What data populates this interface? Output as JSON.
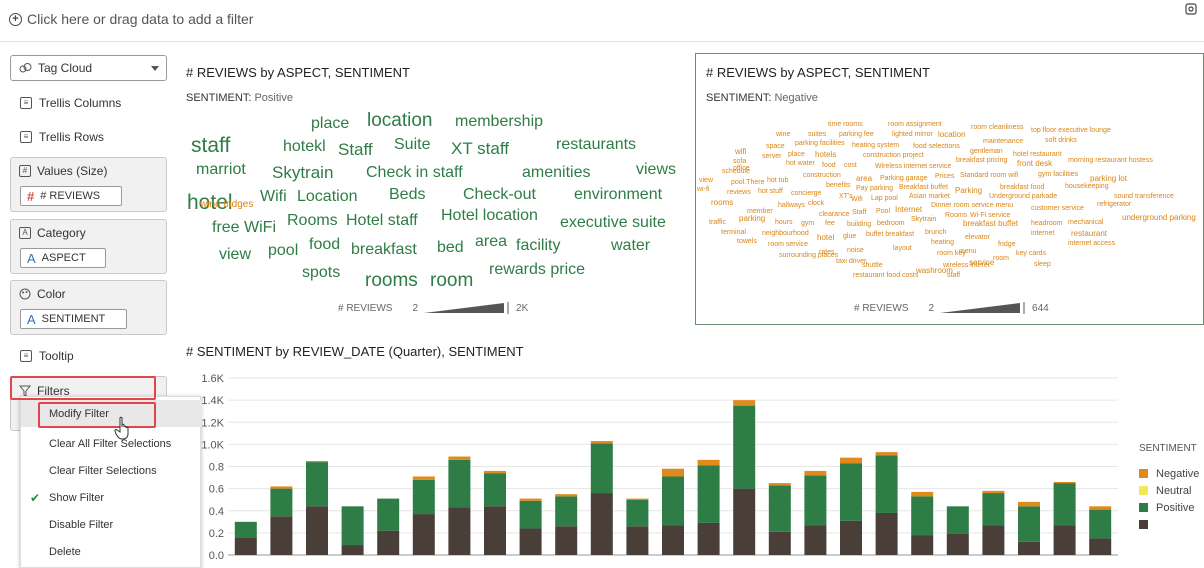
{
  "filterbar": {
    "add_label": "Click here or drag data to add a filter"
  },
  "grammar": {
    "viz_type": "Tag Cloud",
    "trellis_columns": "Trellis Columns",
    "trellis_rows": "Trellis Rows",
    "values_label": "Values (Size)",
    "values_pill": "# REVIEWS",
    "category_label": "Category",
    "category_pill": "ASPECT",
    "color_label": "Color",
    "color_pill": "SENTIMENT",
    "tooltip": "Tooltip",
    "filters": "Filters"
  },
  "menu": {
    "items": [
      "Modify Filter",
      "Clear All Filter Selections",
      "Clear Filter Selections",
      "Show Filter",
      "Disable Filter",
      "Delete"
    ]
  },
  "cloud_pos": {
    "title": "# REVIEWS by ASPECT, SENTIMENT",
    "sentiment_key": "SENTIMENT:",
    "sentiment_val": "Positive",
    "legend_title": "# REVIEWS",
    "legend_min": "2",
    "legend_max": "2K",
    "tags": [
      "place",
      "location",
      "membership",
      "staff",
      "hotekl",
      "Suite",
      "Staff",
      "XT staff",
      "restaurants",
      "marriot",
      "Skytrain",
      "Check in staff",
      "amenities",
      "views",
      "hotel",
      "Wifi",
      "Location",
      "Beds",
      "Check-out",
      "environment",
      "free WiFi",
      "Rooms",
      "Hotel staff",
      "Hotel location",
      "executive suite",
      "view",
      "pool",
      "food",
      "breakfast",
      "bed",
      "area",
      "facility",
      "water",
      "spots",
      "rooms",
      "room",
      "rewards price"
    ]
  },
  "cloud_neg": {
    "title": "# REVIEWS by ASPECT, SENTIMENT",
    "sentiment_key": "SENTIMENT:",
    "sentiment_val": "Negative",
    "legend_title": "# REVIEWS",
    "legend_min": "2",
    "legend_max": "644",
    "tags": [
      "time rooms",
      "room assignment",
      "wine",
      "suites",
      "parking fee",
      "lighted mirror",
      "location",
      "room cleanliness",
      "top floor executive lounge",
      "parking facilities",
      "heating system",
      "food selections",
      "maintenance",
      "soft drinks",
      "wifi",
      "space",
      "place",
      "hotels",
      "construction project",
      "gentleman",
      "hotel restaurant",
      "sofa",
      "server",
      "hot water",
      "food",
      "cost",
      "Wireless internet service",
      "breakfast pricing",
      "front desk",
      "morning restaurant hostess",
      "view",
      "schedule",
      "office",
      "construction",
      "area",
      "Parking garage",
      "Prices",
      "Standard room wifi",
      "gym facilities",
      "parking lot",
      "wi-fi",
      "pool.There",
      "hot tub",
      "benefits",
      "Pay parking",
      "Breakfast buffet",
      "Parking",
      "breakfast food",
      "housekeeping",
      "reviews",
      "hot stuff",
      "concierge",
      "XT's",
      "Wifi",
      "Lap pool",
      "Asian market",
      "Underground parkade",
      "sound transference",
      "rooms",
      "hallways",
      "clock",
      "Dinner room service menu",
      "customer service",
      "refrigerator",
      "member",
      "clearance",
      "Staff",
      "Pool",
      "Internet",
      "Rooms",
      "Wi-Fi service",
      "traffic",
      "parking",
      "hours",
      "gym",
      "fee",
      "building",
      "bedroom",
      "Skytrain",
      "breakfast buffet",
      "headroom",
      "mechanical",
      "underground parking",
      "terminal",
      "neighbourhood",
      "hotel",
      "glue",
      "buffet breakfast",
      "brunch",
      "elevator",
      "internet",
      "restaurant",
      "towels",
      "room service",
      "rates",
      "noise",
      "layout",
      "heating",
      "fridge",
      "internet access",
      "surrounding places",
      "taxi driver",
      "shuttle",
      "room key",
      "menu",
      "key cards",
      "restaurant food costs",
      "wireless interet",
      "service",
      "room",
      "sleep",
      "washroom",
      "staff",
      "wine fridges"
    ]
  },
  "chart_data": {
    "type": "bar",
    "title": "# SENTIMENT by REVIEW_DATE (Quarter), SENTIMENT",
    "legend_title": "SENTIMENT",
    "series": [
      {
        "name": "Negative",
        "color": "#e08a1e",
        "values": [
          0,
          0.02,
          0.01,
          0,
          0,
          0.03,
          0.03,
          0.02,
          0.02,
          0.02,
          0.02,
          0.01,
          0.07,
          0.05,
          0.05,
          0.02,
          0.04,
          0.05,
          0.03,
          0.04,
          0,
          0.02,
          0.04,
          0.01,
          0.03
        ]
      },
      {
        "name": "Neutral",
        "color": "#f2e85a",
        "values": [
          0,
          0,
          0,
          0,
          0,
          0,
          0,
          0,
          0,
          0,
          0,
          0,
          0,
          0,
          0,
          0,
          0,
          0,
          0,
          0,
          0,
          0,
          0,
          0,
          0
        ]
      },
      {
        "name": "Positive",
        "color": "#2e7d46",
        "values": [
          0.14,
          0.25,
          0.4,
          0.35,
          0.29,
          0.31,
          0.43,
          0.3,
          0.25,
          0.27,
          0.45,
          0.24,
          0.44,
          0.52,
          0.75,
          0.42,
          0.45,
          0.52,
          0.52,
          0.35,
          0.25,
          0.29,
          0.32,
          0.38,
          0.26
        ]
      },
      {
        "name": "",
        "color": "#4a3f38",
        "values": [
          0.16,
          0.35,
          0.44,
          0.09,
          0.22,
          0.37,
          0.43,
          0.44,
          0.24,
          0.26,
          0.56,
          0.26,
          0.27,
          0.29,
          0.6,
          0.21,
          0.27,
          0.31,
          0.38,
          0.18,
          0.19,
          0.27,
          0.12,
          0.27,
          0.15
        ]
      }
    ],
    "ylim": [
      0,
      1.6
    ],
    "yticks": [
      "0.0",
      "0.2",
      "0.4",
      "0.6",
      "0.8",
      "1.0K",
      "1.2K",
      "1.4K",
      "1.6K"
    ]
  }
}
